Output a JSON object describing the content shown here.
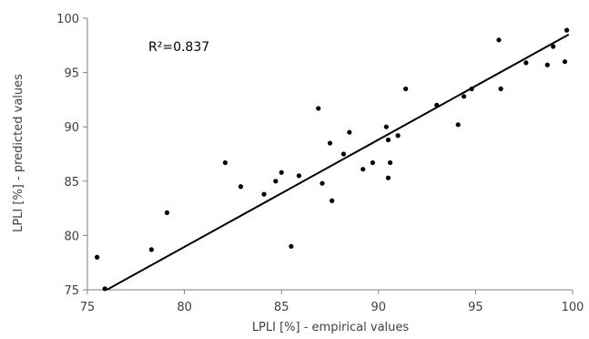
{
  "chart_data": {
    "type": "scatter",
    "xlabel": "LPLI [%]  - empirical values",
    "ylabel": "LPLI  [%] - predicted values",
    "xlim": [
      75,
      100
    ],
    "ylim": [
      75,
      100
    ],
    "xticks": [
      75,
      80,
      85,
      90,
      95,
      100
    ],
    "yticks": [
      75,
      80,
      85,
      90,
      95,
      100
    ],
    "grid": false,
    "annotation": "R²=0.837",
    "points": [
      {
        "x": 75.5,
        "y": 78.0
      },
      {
        "x": 75.9,
        "y": 75.1
      },
      {
        "x": 78.3,
        "y": 78.7
      },
      {
        "x": 79.1,
        "y": 82.1
      },
      {
        "x": 82.1,
        "y": 86.7
      },
      {
        "x": 82.9,
        "y": 84.5
      },
      {
        "x": 84.1,
        "y": 83.8
      },
      {
        "x": 84.7,
        "y": 85.0
      },
      {
        "x": 85.0,
        "y": 85.8
      },
      {
        "x": 85.5,
        "y": 79.0
      },
      {
        "x": 85.9,
        "y": 85.5
      },
      {
        "x": 86.9,
        "y": 91.7
      },
      {
        "x": 87.1,
        "y": 84.8
      },
      {
        "x": 87.5,
        "y": 88.5
      },
      {
        "x": 87.6,
        "y": 83.2
      },
      {
        "x": 88.2,
        "y": 87.5
      },
      {
        "x": 88.5,
        "y": 89.5
      },
      {
        "x": 89.2,
        "y": 86.1
      },
      {
        "x": 89.7,
        "y": 86.7
      },
      {
        "x": 90.4,
        "y": 90.0
      },
      {
        "x": 90.5,
        "y": 88.8
      },
      {
        "x": 90.5,
        "y": 85.3
      },
      {
        "x": 90.6,
        "y": 86.7
      },
      {
        "x": 91.0,
        "y": 89.2
      },
      {
        "x": 91.4,
        "y": 93.5
      },
      {
        "x": 93.0,
        "y": 92.0
      },
      {
        "x": 94.1,
        "y": 90.2
      },
      {
        "x": 94.4,
        "y": 92.8
      },
      {
        "x": 94.8,
        "y": 93.5
      },
      {
        "x": 96.2,
        "y": 98.0
      },
      {
        "x": 96.3,
        "y": 93.5
      },
      {
        "x": 97.6,
        "y": 95.9
      },
      {
        "x": 98.7,
        "y": 95.7
      },
      {
        "x": 99.0,
        "y": 97.4
      },
      {
        "x": 99.6,
        "y": 96.0
      },
      {
        "x": 99.7,
        "y": 98.9
      }
    ],
    "trendline": {
      "x1": 76.0,
      "y1": 75.0,
      "x2": 99.8,
      "y2": 98.5
    },
    "colors": {
      "points": "#000000",
      "line": "#000000",
      "axis": "#808080",
      "text": "#404040"
    }
  }
}
